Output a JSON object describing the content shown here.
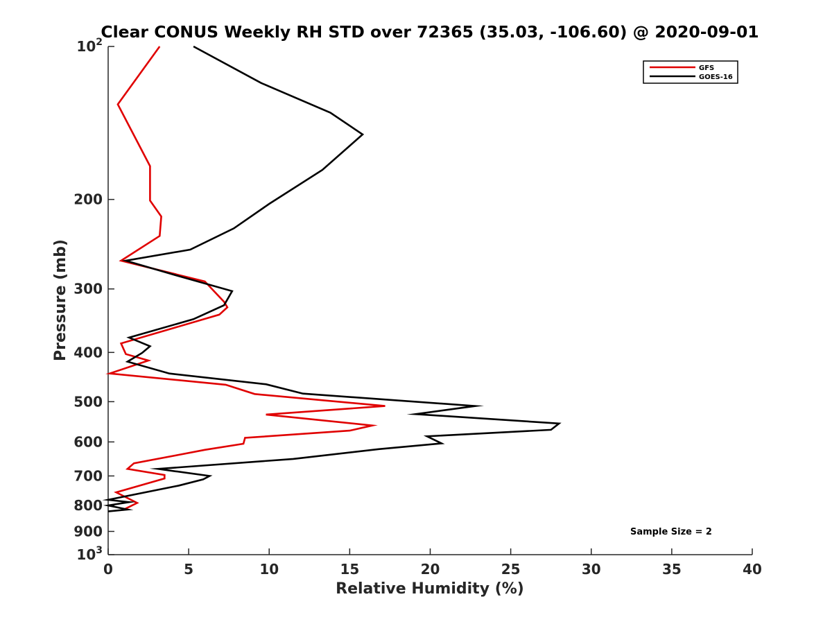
{
  "chart_data": {
    "type": "line",
    "title": "Clear CONUS Weekly RH STD over 72365 (35.03, -106.60) @ 2020-09-01",
    "xlabel": "Relative Humidity (%)",
    "ylabel": "Pressure (mb)",
    "xlim": [
      0,
      40
    ],
    "ylim": [
      100,
      1000
    ],
    "yscale": "log",
    "y_reversed": true,
    "x_ticks": [
      "0",
      "5",
      "10",
      "15",
      "20",
      "25",
      "30",
      "35",
      "40"
    ],
    "y_ticks": [
      {
        "value": 100,
        "base": "10",
        "exp": "2"
      },
      {
        "value": 200,
        "label": "200"
      },
      {
        "value": 300,
        "label": "300"
      },
      {
        "value": 400,
        "label": "400"
      },
      {
        "value": 500,
        "label": "500"
      },
      {
        "value": 600,
        "label": "600"
      },
      {
        "value": 700,
        "label": "700"
      },
      {
        "value": 800,
        "label": "800"
      },
      {
        "value": 900,
        "label": "900"
      },
      {
        "value": 1000,
        "base": "10",
        "exp": "3"
      }
    ],
    "legend_position": "top-right",
    "grid": false,
    "annotation": "Sample Size = 2",
    "series": [
      {
        "name": "GFS",
        "color": "#e00000",
        "x": [
          3.2,
          0.6,
          2.6,
          2.6,
          3.3,
          3.2,
          0.8,
          6.0,
          7.2,
          7.4,
          6.9,
          0.8,
          1.1,
          2.5,
          0.1,
          7.3,
          9.1,
          17.2,
          9.8,
          16.4,
          15.0,
          8.5,
          8.4,
          6.0,
          4.3,
          1.6,
          1.2,
          3.5,
          3.5,
          0.5,
          1.8,
          0.9
        ],
        "y": [
          100,
          130,
          172,
          201,
          216,
          236,
          264,
          290,
          318,
          326,
          337,
          384,
          403,
          415,
          440,
          463,
          483,
          510,
          530,
          557,
          570,
          589,
          605,
          622,
          637,
          661,
          678,
          697,
          708,
          754,
          791,
          817
        ]
      },
      {
        "name": "GOES-16",
        "color": "#000000",
        "x": [
          5.3,
          9.5,
          13.8,
          15.8,
          13.3,
          10.0,
          7.8,
          5.1,
          1.1,
          4.2,
          7.7,
          7.2,
          5.3,
          1.3,
          2.6,
          2.1,
          1.2,
          3.8,
          9.8,
          12.1,
          22.8,
          19.1,
          28.0,
          27.5,
          19.8,
          20.7,
          16.8,
          11.5,
          3.1,
          6.3,
          5.9,
          4.4,
          0.0,
          1.3,
          0.0,
          1.2,
          0.0
        ],
        "y": [
          100,
          118,
          135,
          149,
          175,
          204,
          228,
          251,
          264,
          282,
          303,
          323,
          344,
          374,
          389,
          401,
          417,
          440,
          462,
          482,
          510,
          529,
          552,
          568,
          585,
          604,
          620,
          648,
          678,
          700,
          711,
          731,
          780,
          788,
          800,
          815,
          822
        ]
      }
    ]
  }
}
